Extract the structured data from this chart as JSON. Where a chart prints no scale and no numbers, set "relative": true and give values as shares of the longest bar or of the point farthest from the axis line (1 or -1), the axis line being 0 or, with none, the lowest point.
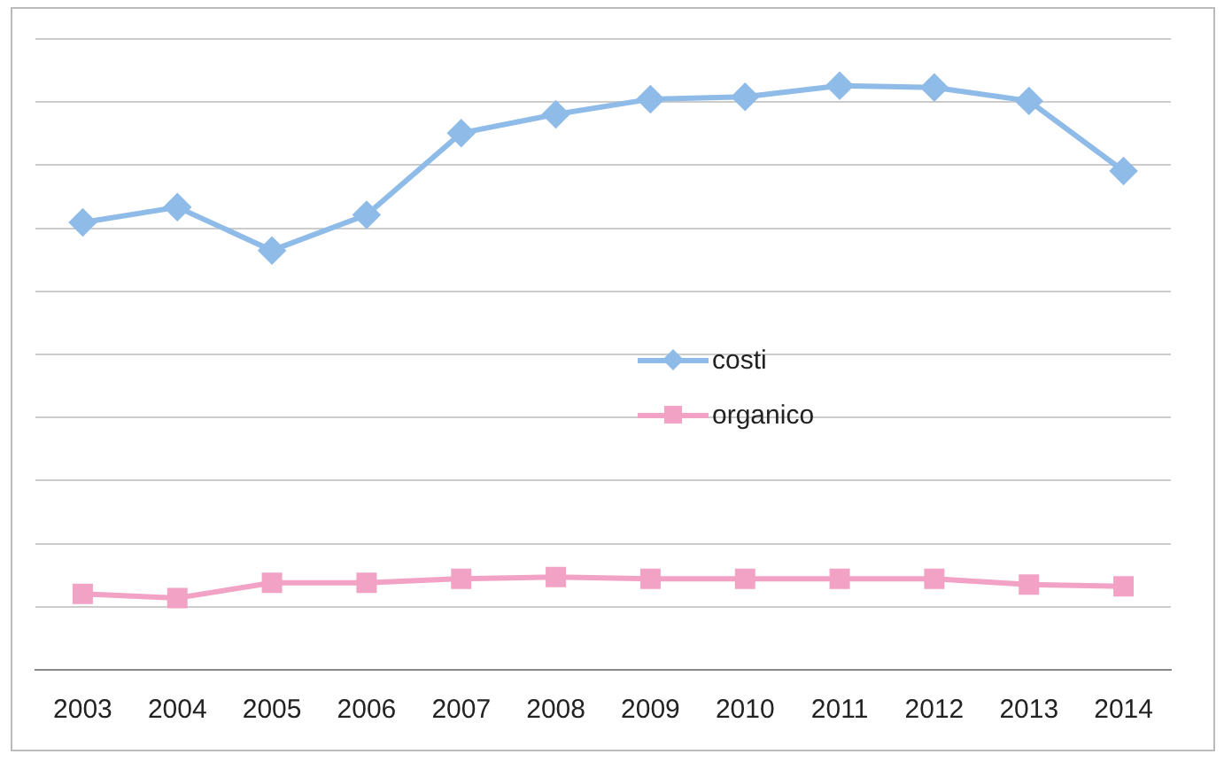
{
  "chart_data": {
    "type": "line",
    "relative": true,
    "categories": [
      "2003",
      "2004",
      "2005",
      "2006",
      "2007",
      "2008",
      "2009",
      "2010",
      "2011",
      "2012",
      "2013",
      "2014"
    ],
    "series": [
      {
        "name": "costi",
        "color": "#8fbbe9",
        "marker": "diamond",
        "values": [
          0.766,
          0.792,
          0.718,
          0.779,
          0.919,
          0.951,
          0.977,
          0.981,
          1,
          0.997,
          0.974,
          0.854
        ]
      },
      {
        "name": "organico",
        "color": "#f2a2c4",
        "marker": "square",
        "values": [
          0.13,
          0.123,
          0.149,
          0.149,
          0.156,
          0.159,
          0.156,
          0.156,
          0.156,
          0.156,
          0.146,
          0.143
        ]
      }
    ],
    "grid": "y",
    "legend": "center"
  }
}
